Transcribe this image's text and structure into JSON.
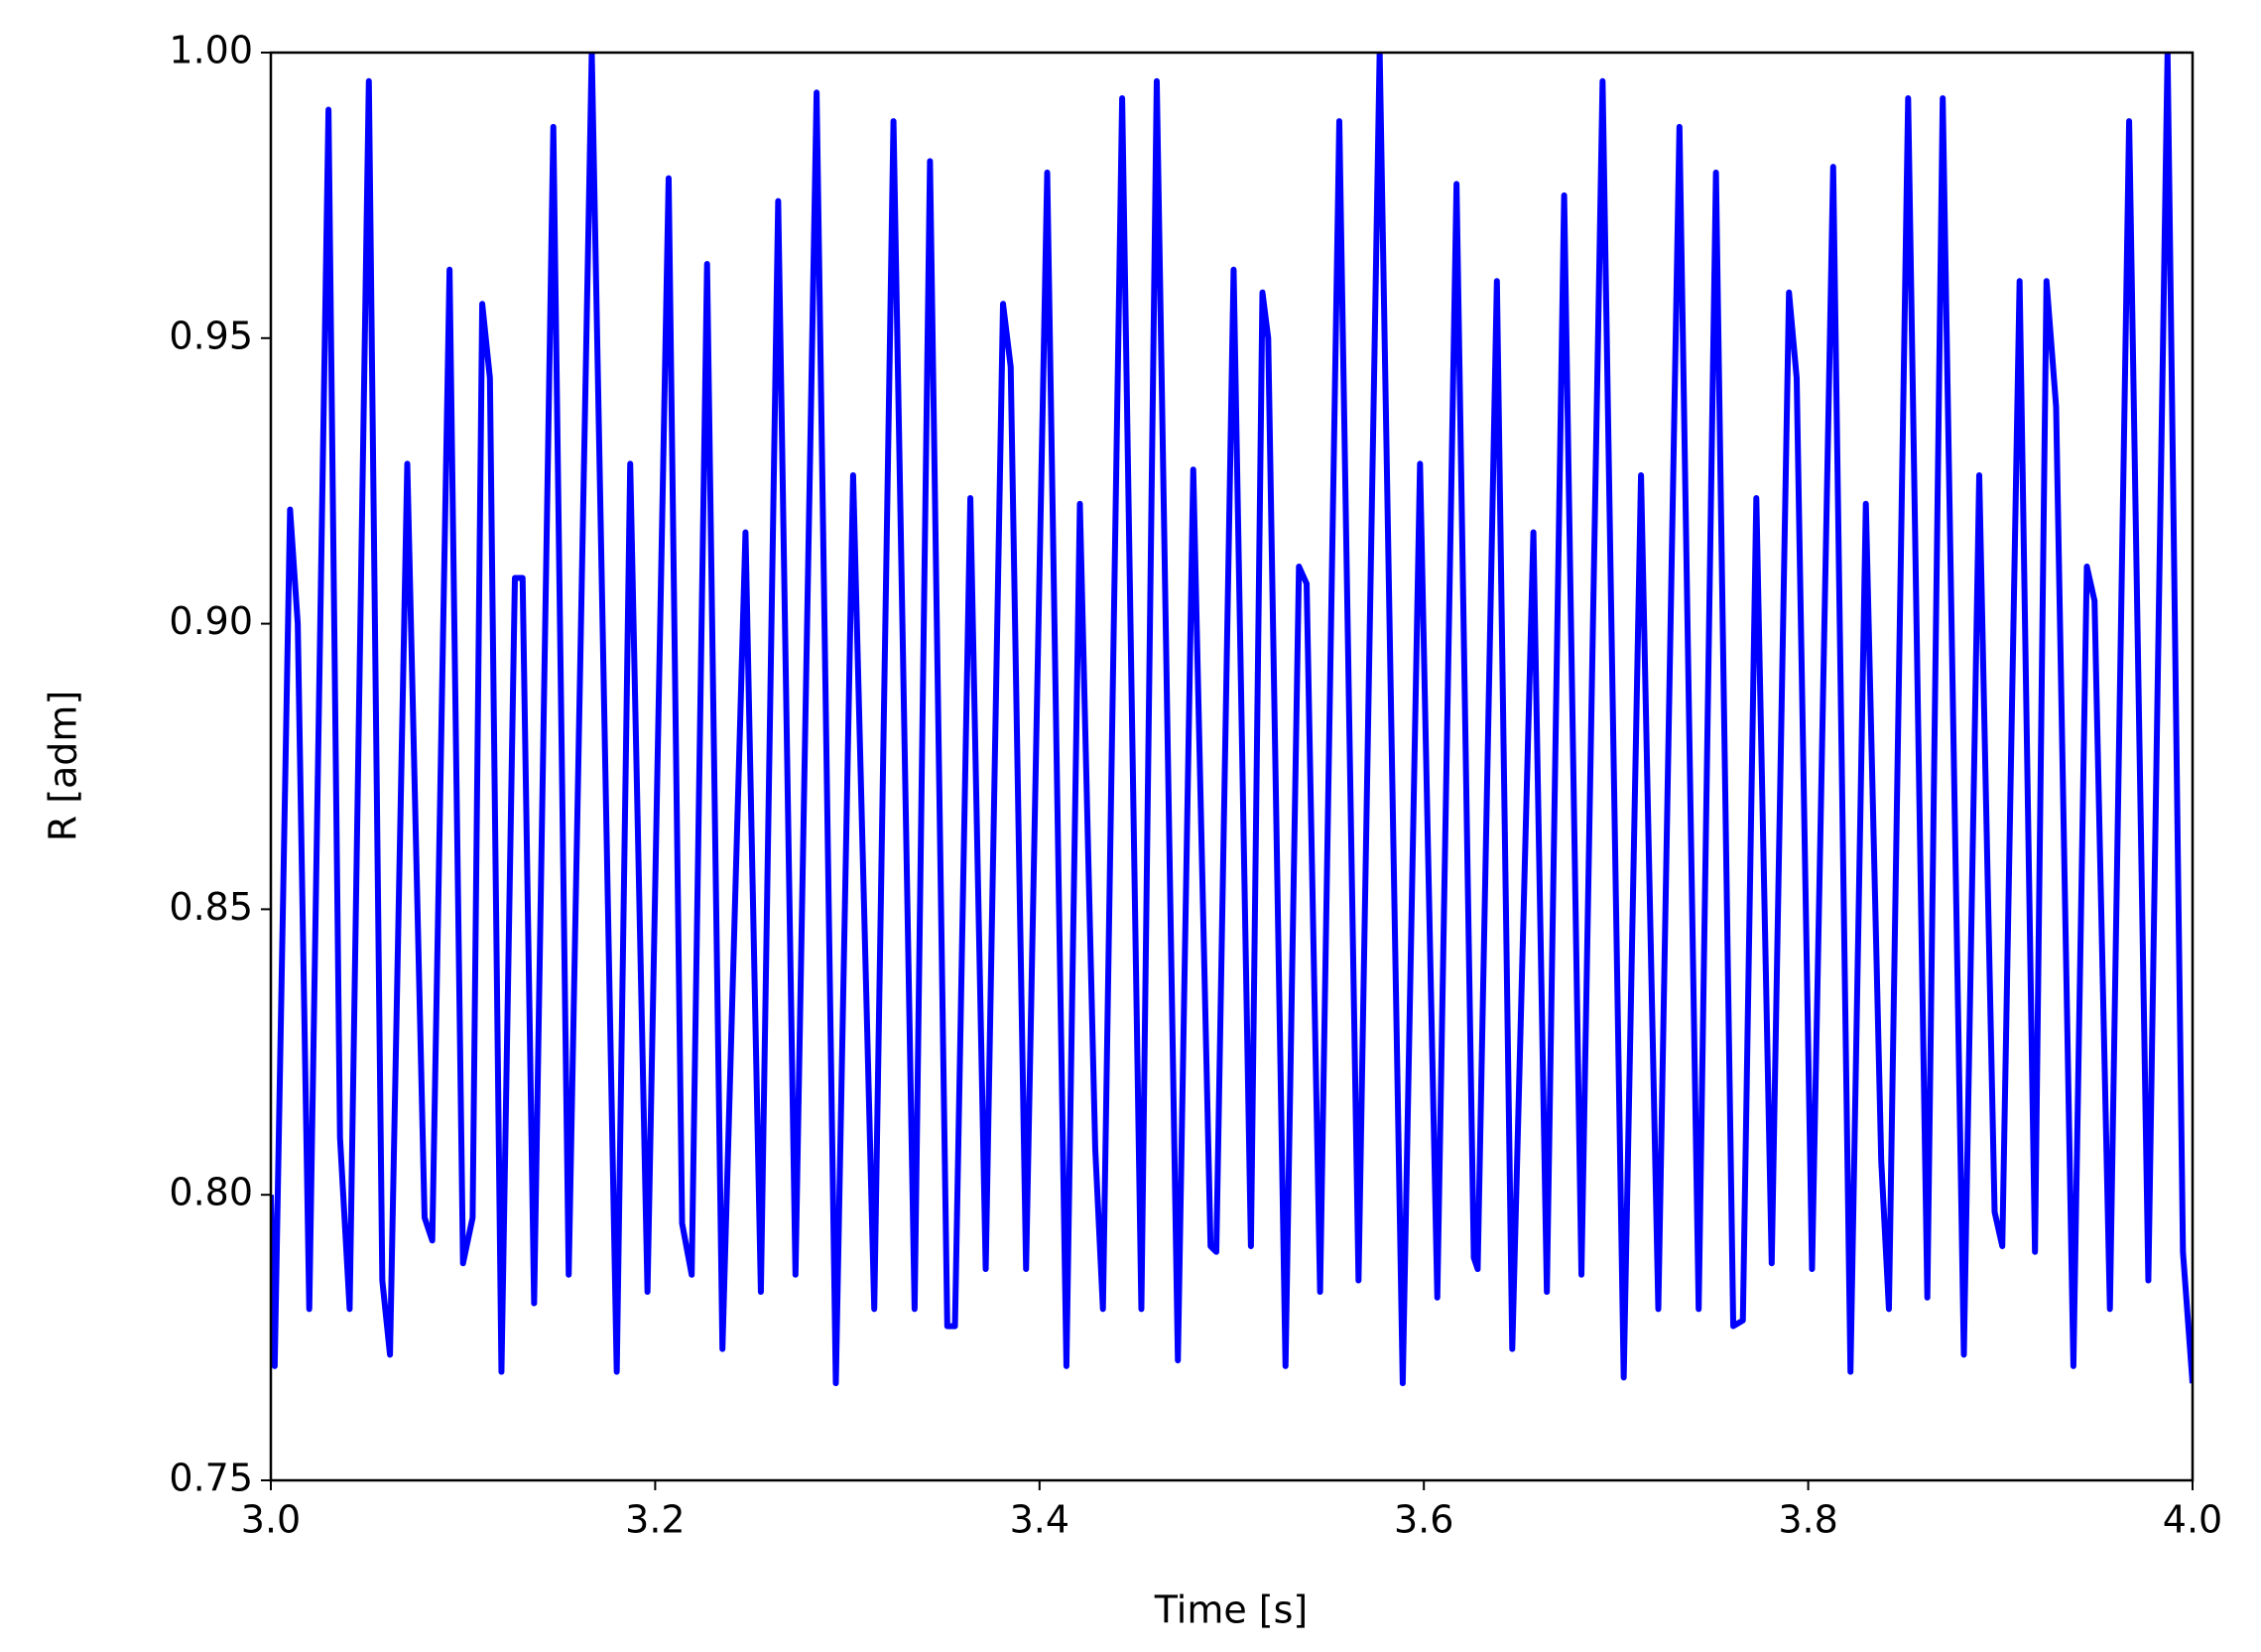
{
  "chart_data": {
    "type": "line",
    "x_label": "Time [s]",
    "y_label": "R [adm]",
    "xlim": [
      3.0,
      4.0
    ],
    "ylim": [
      0.75,
      1.0
    ],
    "xticks": [
      {
        "value": 3,
        "label": "3.0"
      },
      {
        "value": 3.2,
        "label": "3.2"
      },
      {
        "value": 3.4,
        "label": "3.4"
      },
      {
        "value": 3.6,
        "label": "3.6"
      },
      {
        "value": 3.8,
        "label": "3.8"
      },
      {
        "value": 4,
        "label": "4.0"
      }
    ],
    "yticks": [
      0.75,
      {
        "value": 0.8,
        "label": "0.80"
      },
      0.85,
      {
        "value": 0.9,
        "label": "0.90"
      },
      0.95,
      {
        "value": 1,
        "label": "1.00"
      }
    ],
    "grid": false,
    "series": [
      {
        "color": "#0000ff",
        "x": [
          3.0,
          3.002,
          3.01,
          3.014,
          3.02,
          3.03,
          3.036,
          3.041,
          3.051,
          3.058,
          3.062,
          3.071,
          3.08,
          3.084,
          3.093,
          3.1,
          3.105,
          3.11,
          3.114,
          3.12,
          3.127,
          3.131,
          3.137,
          3.147,
          3.155,
          3.167,
          3.18,
          3.187,
          3.196,
          3.207,
          3.214,
          3.219,
          3.227,
          3.235,
          3.247,
          3.255,
          3.264,
          3.273,
          3.284,
          3.294,
          3.303,
          3.314,
          3.324,
          3.335,
          3.343,
          3.352,
          3.356,
          3.364,
          3.372,
          3.381,
          3.385,
          3.393,
          3.404,
          3.414,
          3.421,
          3.429,
          3.433,
          3.443,
          3.453,
          3.461,
          3.472,
          3.48,
          3.489,
          3.492,
          3.501,
          3.51,
          3.516,
          3.519,
          3.528,
          3.535,
          3.539,
          3.546,
          3.556,
          3.566,
          3.577,
          3.589,
          3.598,
          3.607,
          3.617,
          3.626,
          3.628,
          3.638,
          3.646,
          3.657,
          3.664,
          3.673,
          3.682,
          3.693,
          3.704,
          3.713,
          3.722,
          3.733,
          3.743,
          3.752,
          3.761,
          3.766,
          3.773,
          3.781,
          3.79,
          3.794,
          3.802,
          3.813,
          3.822,
          3.83,
          3.838,
          3.842,
          3.852,
          3.862,
          3.87,
          3.881,
          3.889,
          3.897,
          3.901,
          3.91,
          3.918,
          3.924,
          3.929,
          3.938,
          3.945,
          3.949,
          3.957,
          3.967,
          3.977,
          3.987,
          3.995,
          4.0
        ],
        "values": [
          0.8,
          0.77,
          0.92,
          0.9,
          0.78,
          0.99,
          0.81,
          0.78,
          0.995,
          0.785,
          0.772,
          0.928,
          0.796,
          0.792,
          0.962,
          0.788,
          0.796,
          0.956,
          0.943,
          0.769,
          0.908,
          0.908,
          0.781,
          0.987,
          0.786,
          1.0,
          0.769,
          0.928,
          0.783,
          0.978,
          0.795,
          0.786,
          0.963,
          0.773,
          0.916,
          0.783,
          0.974,
          0.786,
          0.993,
          0.767,
          0.926,
          0.78,
          0.988,
          0.78,
          0.981,
          0.777,
          0.777,
          0.922,
          0.787,
          0.956,
          0.945,
          0.787,
          0.979,
          0.77,
          0.921,
          0.808,
          0.78,
          0.992,
          0.78,
          0.995,
          0.771,
          0.927,
          0.791,
          0.79,
          0.962,
          0.791,
          0.958,
          0.95,
          0.77,
          0.91,
          0.907,
          0.783,
          0.988,
          0.785,
          1.0,
          0.767,
          0.928,
          0.782,
          0.977,
          0.789,
          0.787,
          0.96,
          0.773,
          0.916,
          0.783,
          0.975,
          0.786,
          0.995,
          0.768,
          0.926,
          0.78,
          0.987,
          0.78,
          0.979,
          0.777,
          0.778,
          0.922,
          0.788,
          0.958,
          0.943,
          0.787,
          0.98,
          0.769,
          0.921,
          0.806,
          0.78,
          0.992,
          0.782,
          0.992,
          0.772,
          0.926,
          0.797,
          0.791,
          0.96,
          0.79,
          0.96,
          0.938,
          0.77,
          0.91,
          0.904,
          0.78,
          0.988,
          0.785,
          1.0,
          0.79,
          0.767
        ]
      }
    ]
  }
}
